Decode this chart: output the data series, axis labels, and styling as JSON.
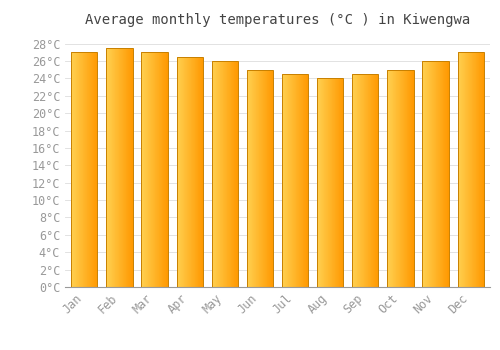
{
  "title": "Average monthly temperatures (°C ) in Kiwengwa",
  "months": [
    "Jan",
    "Feb",
    "Mar",
    "Apr",
    "May",
    "Jun",
    "Jul",
    "Aug",
    "Sep",
    "Oct",
    "Nov",
    "Dec"
  ],
  "values": [
    27.0,
    27.5,
    27.0,
    26.5,
    26.0,
    25.0,
    24.5,
    24.0,
    24.5,
    25.0,
    26.0,
    27.0
  ],
  "bar_color_left": "#FFD060",
  "bar_color_right": "#FFA000",
  "bar_edge_color": "#C88000",
  "background_color": "#ffffff",
  "grid_color": "#dddddd",
  "ylim": [
    0,
    29
  ],
  "yticks": [
    0,
    2,
    4,
    6,
    8,
    10,
    12,
    14,
    16,
    18,
    20,
    22,
    24,
    26,
    28
  ],
  "title_fontsize": 10,
  "tick_fontsize": 8.5,
  "tick_color": "#999999"
}
